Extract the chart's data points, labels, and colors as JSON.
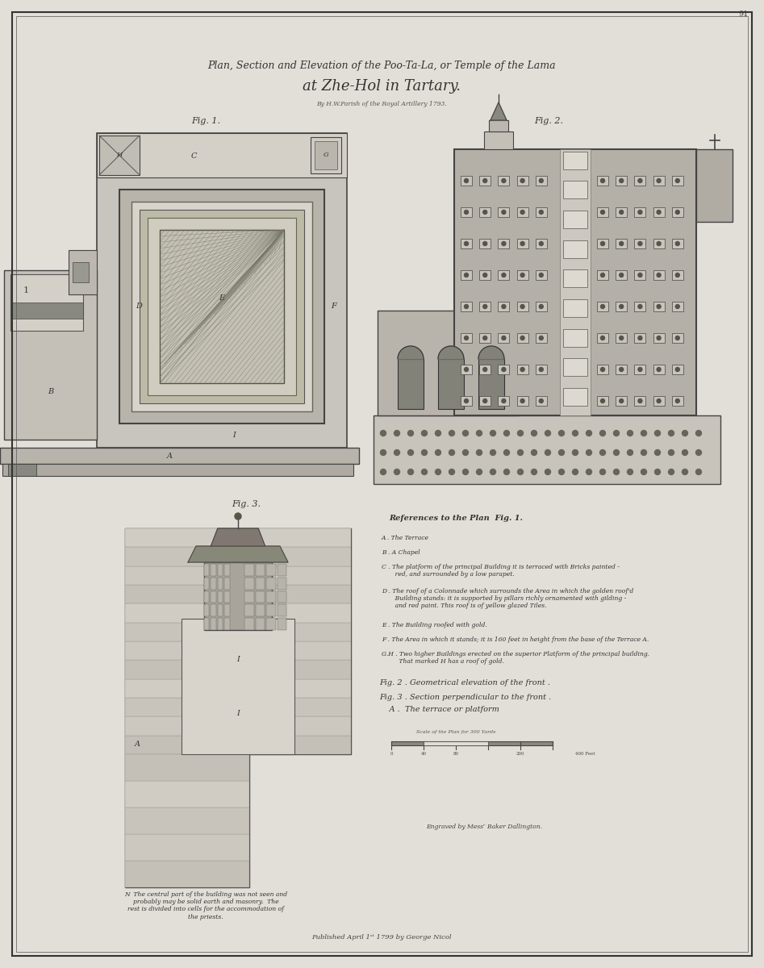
{
  "title_line1": "Plan, Section and Elevation of the Poo-Ta-La, or Temple of the Lama",
  "title_line2": "at Zhe-Hol in Tartary.",
  "title_line3": "By H.W.Parish of the Royal Artillery 1793.",
  "fig1_label": "Fig. 1.",
  "fig2_label": "Fig. 2.",
  "fig3_label": "Fig. 3.",
  "paper_color": "#e2dfd8",
  "references_title": "References to the Plan  Fig. 1.",
  "ref_A": "A . The Terrace",
  "ref_B": "B . A Chapel",
  "ref_C": "C . The platform of the principal Building it is terraced with Bricks painted -\n       red, and surrounded by a low parapet.",
  "ref_D": "D . The roof of a Colonnade which surrounds the Area in which the golden roof'd\n       Building stands: it is supported by pillars richly ornamented with gilding -\n       and red paint. This roof is of yellow glazed Tiles.",
  "ref_E": "E . The Building roofed with gold.",
  "ref_F": "F . The Area in which it stands; it is 160 feet in height from the base of the Terrace A.",
  "ref_GH": "G.H . Two higher Buildings erected on the superior Platform of the principal building.\n         That marked H has a roof of gold.",
  "ref_fig2": "Fig. 2 . Geometrical elevation of the front .",
  "ref_fig3": "Fig. 3 . Section perpendicular to the front .",
  "ref_fig3A": "    A .  The terrace or platform",
  "engraved": "Engraved by Messʳ Baker Dallington.",
  "published": "Published April 1ˢᵗ 1799 by George Nicol",
  "page_num": "91",
  "note_fig3": "N  The central part of the building was not seen and\nprobably may be solid earth and masonry.  The\nrest is divided into cells for the accommodation of\nthe priests."
}
